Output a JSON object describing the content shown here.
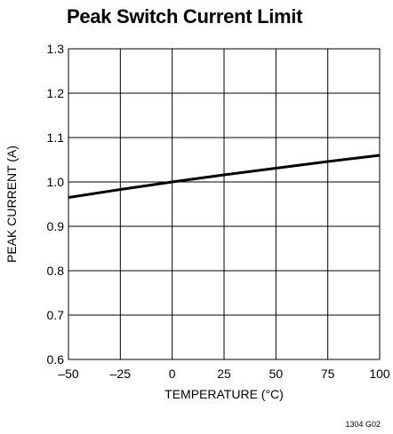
{
  "chart_data": {
    "type": "line",
    "title": "Peak Switch Current Limit",
    "xlabel": "TEMPERATURE (°C)",
    "ylabel": "PEAK CURRENT (A)",
    "xlim": [
      -50,
      100
    ],
    "ylim": [
      0.6,
      1.3
    ],
    "x_ticks": [
      -50,
      -25,
      0,
      25,
      50,
      75,
      100
    ],
    "x_tick_labels": [
      "–50",
      "–25",
      "0",
      "25",
      "50",
      "75",
      "100"
    ],
    "y_ticks": [
      0.6,
      0.7,
      0.8,
      0.9,
      1.0,
      1.1,
      1.2,
      1.3
    ],
    "y_tick_labels": [
      "0.6",
      "0.7",
      "0.8",
      "0.9",
      "1.0",
      "1.1",
      "1.2",
      "1.3"
    ],
    "grid": true,
    "series": [
      {
        "x": [
          -50,
          -25,
          0,
          25,
          50,
          75,
          100
        ],
        "y": [
          0.965,
          0.983,
          1.0,
          1.016,
          1.031,
          1.046,
          1.06
        ],
        "color": "#000000"
      }
    ],
    "annotation": "1304 G02"
  }
}
